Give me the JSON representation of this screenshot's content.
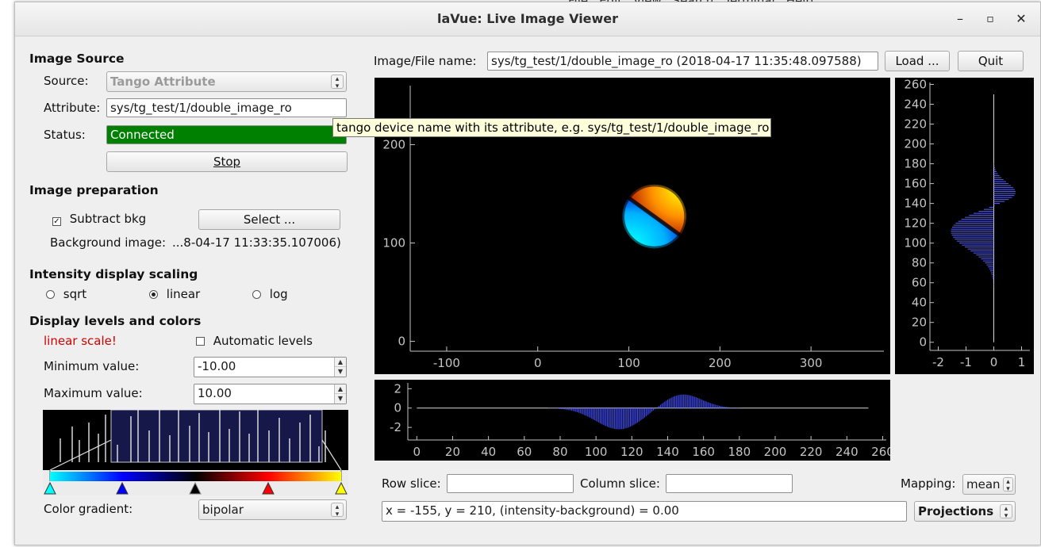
{
  "background_menu": [
    "File",
    "Edit",
    "View",
    "Search",
    "Terminal",
    "Help"
  ],
  "window": {
    "title": "laVue: Live Image Viewer",
    "minimize": "–",
    "maximize": "▫",
    "close": "✕"
  },
  "image_source": {
    "heading": "Image Source",
    "source_label": "Source:",
    "source_value": "Tango Attribute",
    "attribute_label": "Attribute:",
    "attribute_value": "sys/tg_test/1/double_image_ro",
    "status_label": "Status:",
    "status_value": "Connected",
    "stop_button": "Stop",
    "status_color": "#008000"
  },
  "tooltip": "tango device name with its attribute, e.g. sys/tg_test/1/double_image_ro",
  "image_preparation": {
    "heading": "Image preparation",
    "subtract_bkg_label": "Subtract bkg",
    "subtract_bkg_checked": true,
    "select_button": "Select ...",
    "background_label": "Background image:",
    "background_value": "...8-04-17 11:33:35.107006)"
  },
  "intensity_scaling": {
    "heading": "Intensity display scaling",
    "options": [
      "sqrt",
      "linear",
      "log"
    ],
    "selected": "linear"
  },
  "display_levels": {
    "heading": "Display levels and colors",
    "warning": "linear scale!",
    "warning_color": "#d00000",
    "auto_levels_label": "Automatic levels",
    "auto_levels_checked": false,
    "min_label": "Minimum value:",
    "min_value": "-10.00",
    "max_label": "Maximum value:",
    "max_value": "10.00",
    "gradient_label": "Color gradient:",
    "gradient_value": "bipolar"
  },
  "top_bar": {
    "file_label": "Image/File name:",
    "file_value": "sys/tg_test/1/double_image_ro  (2018-04-17 11:35:48.097588)",
    "load_button": "Load ...",
    "quit_button": "Quit"
  },
  "bottom_bar": {
    "row_slice_label": "Row slice:",
    "row_slice_value": "",
    "column_slice_label": "Column slice:",
    "column_slice_value": "",
    "mapping_label": "Mapping:",
    "mapping_value": "mean",
    "info_value": "x = -155, y = 210, (intensity-background) = 0.00",
    "projections_value": "Projections"
  },
  "chart_data": [
    {
      "type": "heatmap",
      "name": "main image",
      "x_ticks": [
        -100,
        0,
        100,
        200,
        300
      ],
      "y_ticks": [
        0,
        100,
        200
      ],
      "xlim": [
        -140,
        380
      ],
      "ylim": [
        -10,
        260
      ],
      "colormap": "bipolar",
      "feature": {
        "center_x": 128,
        "center_y": 127,
        "radius": 35,
        "negative_lobe": "lower-left",
        "positive_lobe": "upper-right"
      }
    },
    {
      "type": "bar",
      "name": "row projection (right)",
      "orientation": "horizontal",
      "y_ticks": [
        0,
        20,
        40,
        60,
        80,
        100,
        120,
        140,
        160,
        180,
        200,
        220,
        240,
        260
      ],
      "x_ticks": [
        -2,
        -1,
        0,
        1
      ],
      "ylim": [
        -5,
        262
      ],
      "xlim": [
        -2.3,
        1.3
      ],
      "peaks": [
        {
          "center": 112,
          "width": 18,
          "amplitude": -1.55
        },
        {
          "center": 149,
          "width": 11,
          "amplitude": 0.95
        }
      ],
      "color": "#5a64ff"
    },
    {
      "type": "bar",
      "name": "column projection (bottom)",
      "orientation": "vertical",
      "x_ticks": [
        0,
        20,
        40,
        60,
        80,
        100,
        120,
        140,
        160,
        180,
        200,
        220,
        240,
        260
      ],
      "y_ticks": [
        -2,
        0,
        2
      ],
      "xlim": [
        -5,
        262
      ],
      "ylim": [
        -3.3,
        2.6
      ],
      "peaks": [
        {
          "center": 113,
          "width": 13,
          "amplitude": -2.2
        },
        {
          "center": 148,
          "width": 11,
          "amplitude": 1.45
        }
      ],
      "color": "#4650ff"
    }
  ]
}
